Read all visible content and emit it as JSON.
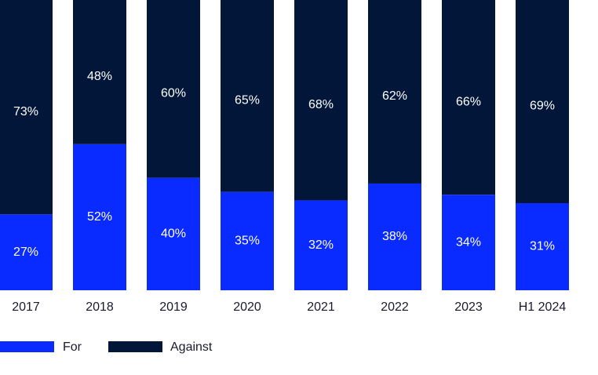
{
  "chart_data": {
    "type": "bar",
    "stacked": true,
    "categories": [
      "2017",
      "2018",
      "2019",
      "2020",
      "2021",
      "2022",
      "2023",
      "H1 2024"
    ],
    "series": [
      {
        "name": "For",
        "values": [
          27,
          52,
          40,
          35,
          32,
          38,
          34,
          31
        ],
        "labels": [
          "27%",
          "52%",
          "40%",
          "35%",
          "32%",
          "38%",
          "34%",
          "31%"
        ],
        "color": "#0a2bff"
      },
      {
        "name": "Against",
        "values": [
          73,
          48,
          60,
          65,
          68,
          62,
          66,
          69
        ],
        "labels": [
          "73%",
          "48%",
          "60%",
          "65%",
          "68%",
          "62%",
          "66%",
          "69%"
        ],
        "color": "#011638"
      }
    ],
    "ylim": [
      0,
      100
    ],
    "legend_position": "bottom-left",
    "title": "",
    "xlabel": "",
    "ylabel": ""
  }
}
